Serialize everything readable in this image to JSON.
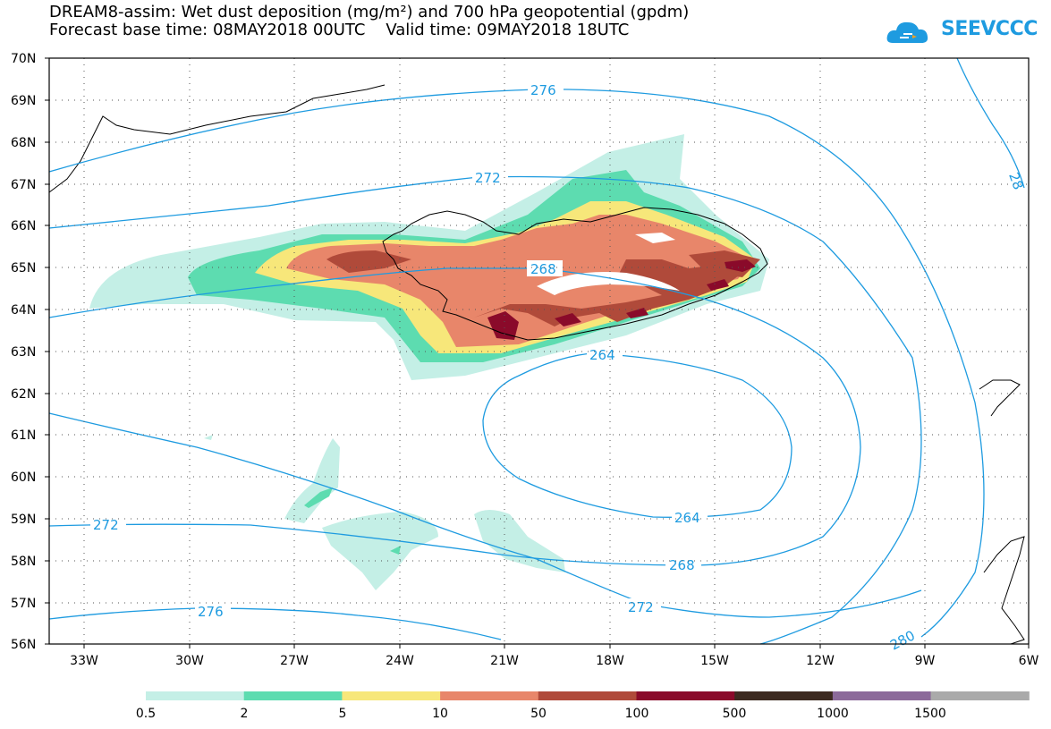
{
  "title_line1": "DREAM8-assim: Wet dust deposition (mg/m²) and 700 hPa geopotential (gpdm)",
  "title_line2": "Forecast base time: 08MAY2018 00UTC    Valid time: 09MAY2018 18UTC",
  "logo_text": "SEEVCCC",
  "logo_icon": "cloud-logo-icon",
  "lat_labels": [
    "70N",
    "69N",
    "68N",
    "67N",
    "66N",
    "65N",
    "64N",
    "63N",
    "62N",
    "61N",
    "60N",
    "59N",
    "58N",
    "57N",
    "56N"
  ],
  "lon_labels": [
    "33W",
    "30W",
    "27W",
    "24W",
    "21W",
    "18W",
    "15W",
    "12W",
    "9W",
    "6W"
  ],
  "contour_labels": [
    "276",
    "272",
    "268",
    "264",
    "264",
    "268",
    "272",
    "276",
    "272",
    "280",
    "28"
  ],
  "colorbar": {
    "colors": [
      "#c4efe6",
      "#5ddcb0",
      "#f7e77a",
      "#e8866a",
      "#b04a3a",
      "#8a0a2a",
      "#3d2a20",
      "#8c6a9a",
      "#aaaaaa"
    ],
    "labels": [
      "0.5",
      "2",
      "5",
      "10",
      "50",
      "100",
      "500",
      "1000",
      "1500"
    ]
  },
  "colors": {
    "contour": "#1e9be0",
    "frame": "#000000"
  }
}
